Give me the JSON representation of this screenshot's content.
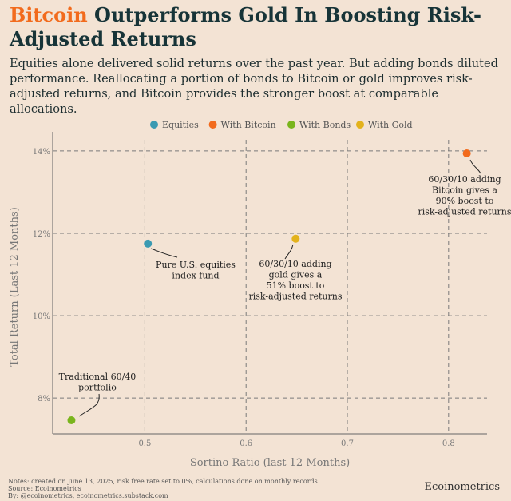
{
  "title": {
    "highlight": "Bitcoin",
    "rest": " Outperforms Gold In Boosting Risk-Adjusted Returns"
  },
  "subtitle": "Equities alone delivered solid returns over the past year. But adding bonds diluted performance. Reallocating a portion of bonds to Bitcoin or gold improves risk-adjusted returns, and Bitcoin provides the stronger boost at comparable allocations.",
  "footer": {
    "notes": "Notes: created on June 13, 2025, risk free rate set to 0%, calculations done on monthly records",
    "source": "Source: Ecoinometrics",
    "by": "By: @ecoinometrics, ecoinometrics.substack.com",
    "brand": "Ecoinometrics"
  },
  "chart_data": {
    "type": "scatter",
    "xlabel": "Sortino Ratio (last 12 Months)",
    "ylabel": "Total Return (Last 12 Months)",
    "xlim": [
      0.409,
      0.838
    ],
    "ylim": [
      7.13,
      14.27
    ],
    "xticks": [
      {
        "v": 0.5,
        "label": "0.5"
      },
      {
        "v": 0.6,
        "label": "0.6"
      },
      {
        "v": 0.7,
        "label": "0.7"
      },
      {
        "v": 0.8,
        "label": "0.8"
      }
    ],
    "yticks": [
      {
        "v": 8,
        "label": "8%"
      },
      {
        "v": 10,
        "label": "10%"
      },
      {
        "v": 12,
        "label": "12%"
      },
      {
        "v": 14,
        "label": "14%"
      }
    ],
    "grid": true,
    "legend_position": "top",
    "series": [
      {
        "name": "Equities",
        "color": "#3a9ab2",
        "x": 0.503,
        "y": 11.75,
        "annotation": [
          "Pure U.S. equities",
          "index fund"
        ]
      },
      {
        "name": "With Bitcoin",
        "color": "#f26b1d",
        "x": 0.818,
        "y": 13.94,
        "annotation": [
          "60/30/10 adding",
          "Bitcoin gives a",
          "90% boost to",
          "risk-adjusted returns"
        ]
      },
      {
        "name": "With Bonds",
        "color": "#7ab51d",
        "x": 0.4275,
        "y": 7.46,
        "annotation": [
          "Traditional 60/40",
          "portfolio"
        ]
      },
      {
        "name": "With Gold",
        "color": "#e3b21c",
        "x": 0.649,
        "y": 11.87,
        "annotation": [
          "60/30/10 adding",
          "gold gives a",
          "51% boost to",
          "risk-adjusted returns"
        ]
      }
    ]
  }
}
